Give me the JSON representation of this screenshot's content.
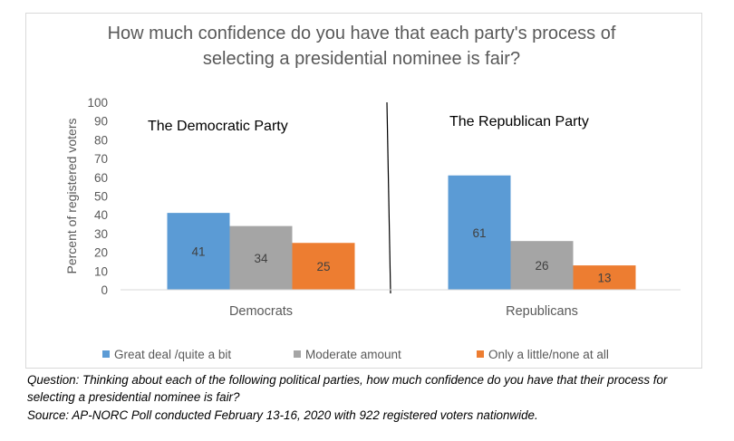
{
  "chart_data": {
    "type": "bar",
    "title": "How much confidence do you have that each party's process of selecting a presidential nominee is fair?",
    "title_lines": [
      "How much confidence do you have that each party's process of",
      "selecting a presidential nominee is fair?"
    ],
    "ylabel": "Percent of registered voters",
    "ylim": [
      0,
      100
    ],
    "ytick_step": 10,
    "yticks": [
      "0",
      "10",
      "20",
      "30",
      "40",
      "50",
      "60",
      "70",
      "80",
      "90",
      "100"
    ],
    "grid": false,
    "legend_position": "bottom",
    "categories": [
      "Democrats",
      "Republicans"
    ],
    "panel_labels": [
      "The Democratic Party",
      "The Republican Party"
    ],
    "series": [
      {
        "name": "Great deal /quite a bit",
        "color": "#5b9bd5",
        "values": [
          41,
          61
        ]
      },
      {
        "name": "Moderate amount",
        "color": "#a5a5a5",
        "values": [
          34,
          26
        ]
      },
      {
        "name": "Only a little/none at all",
        "color": "#ed7d31",
        "values": [
          25,
          13
        ]
      }
    ]
  },
  "caption": {
    "question": "Question: Thinking about each of the following political parties, how much confidence do you have that their process for",
    "question_cont": "selecting a presidential nominee is fair?",
    "source": "Source: AP-NORC Poll conducted February 13-16, 2020 with 922 registered voters nationwide."
  }
}
